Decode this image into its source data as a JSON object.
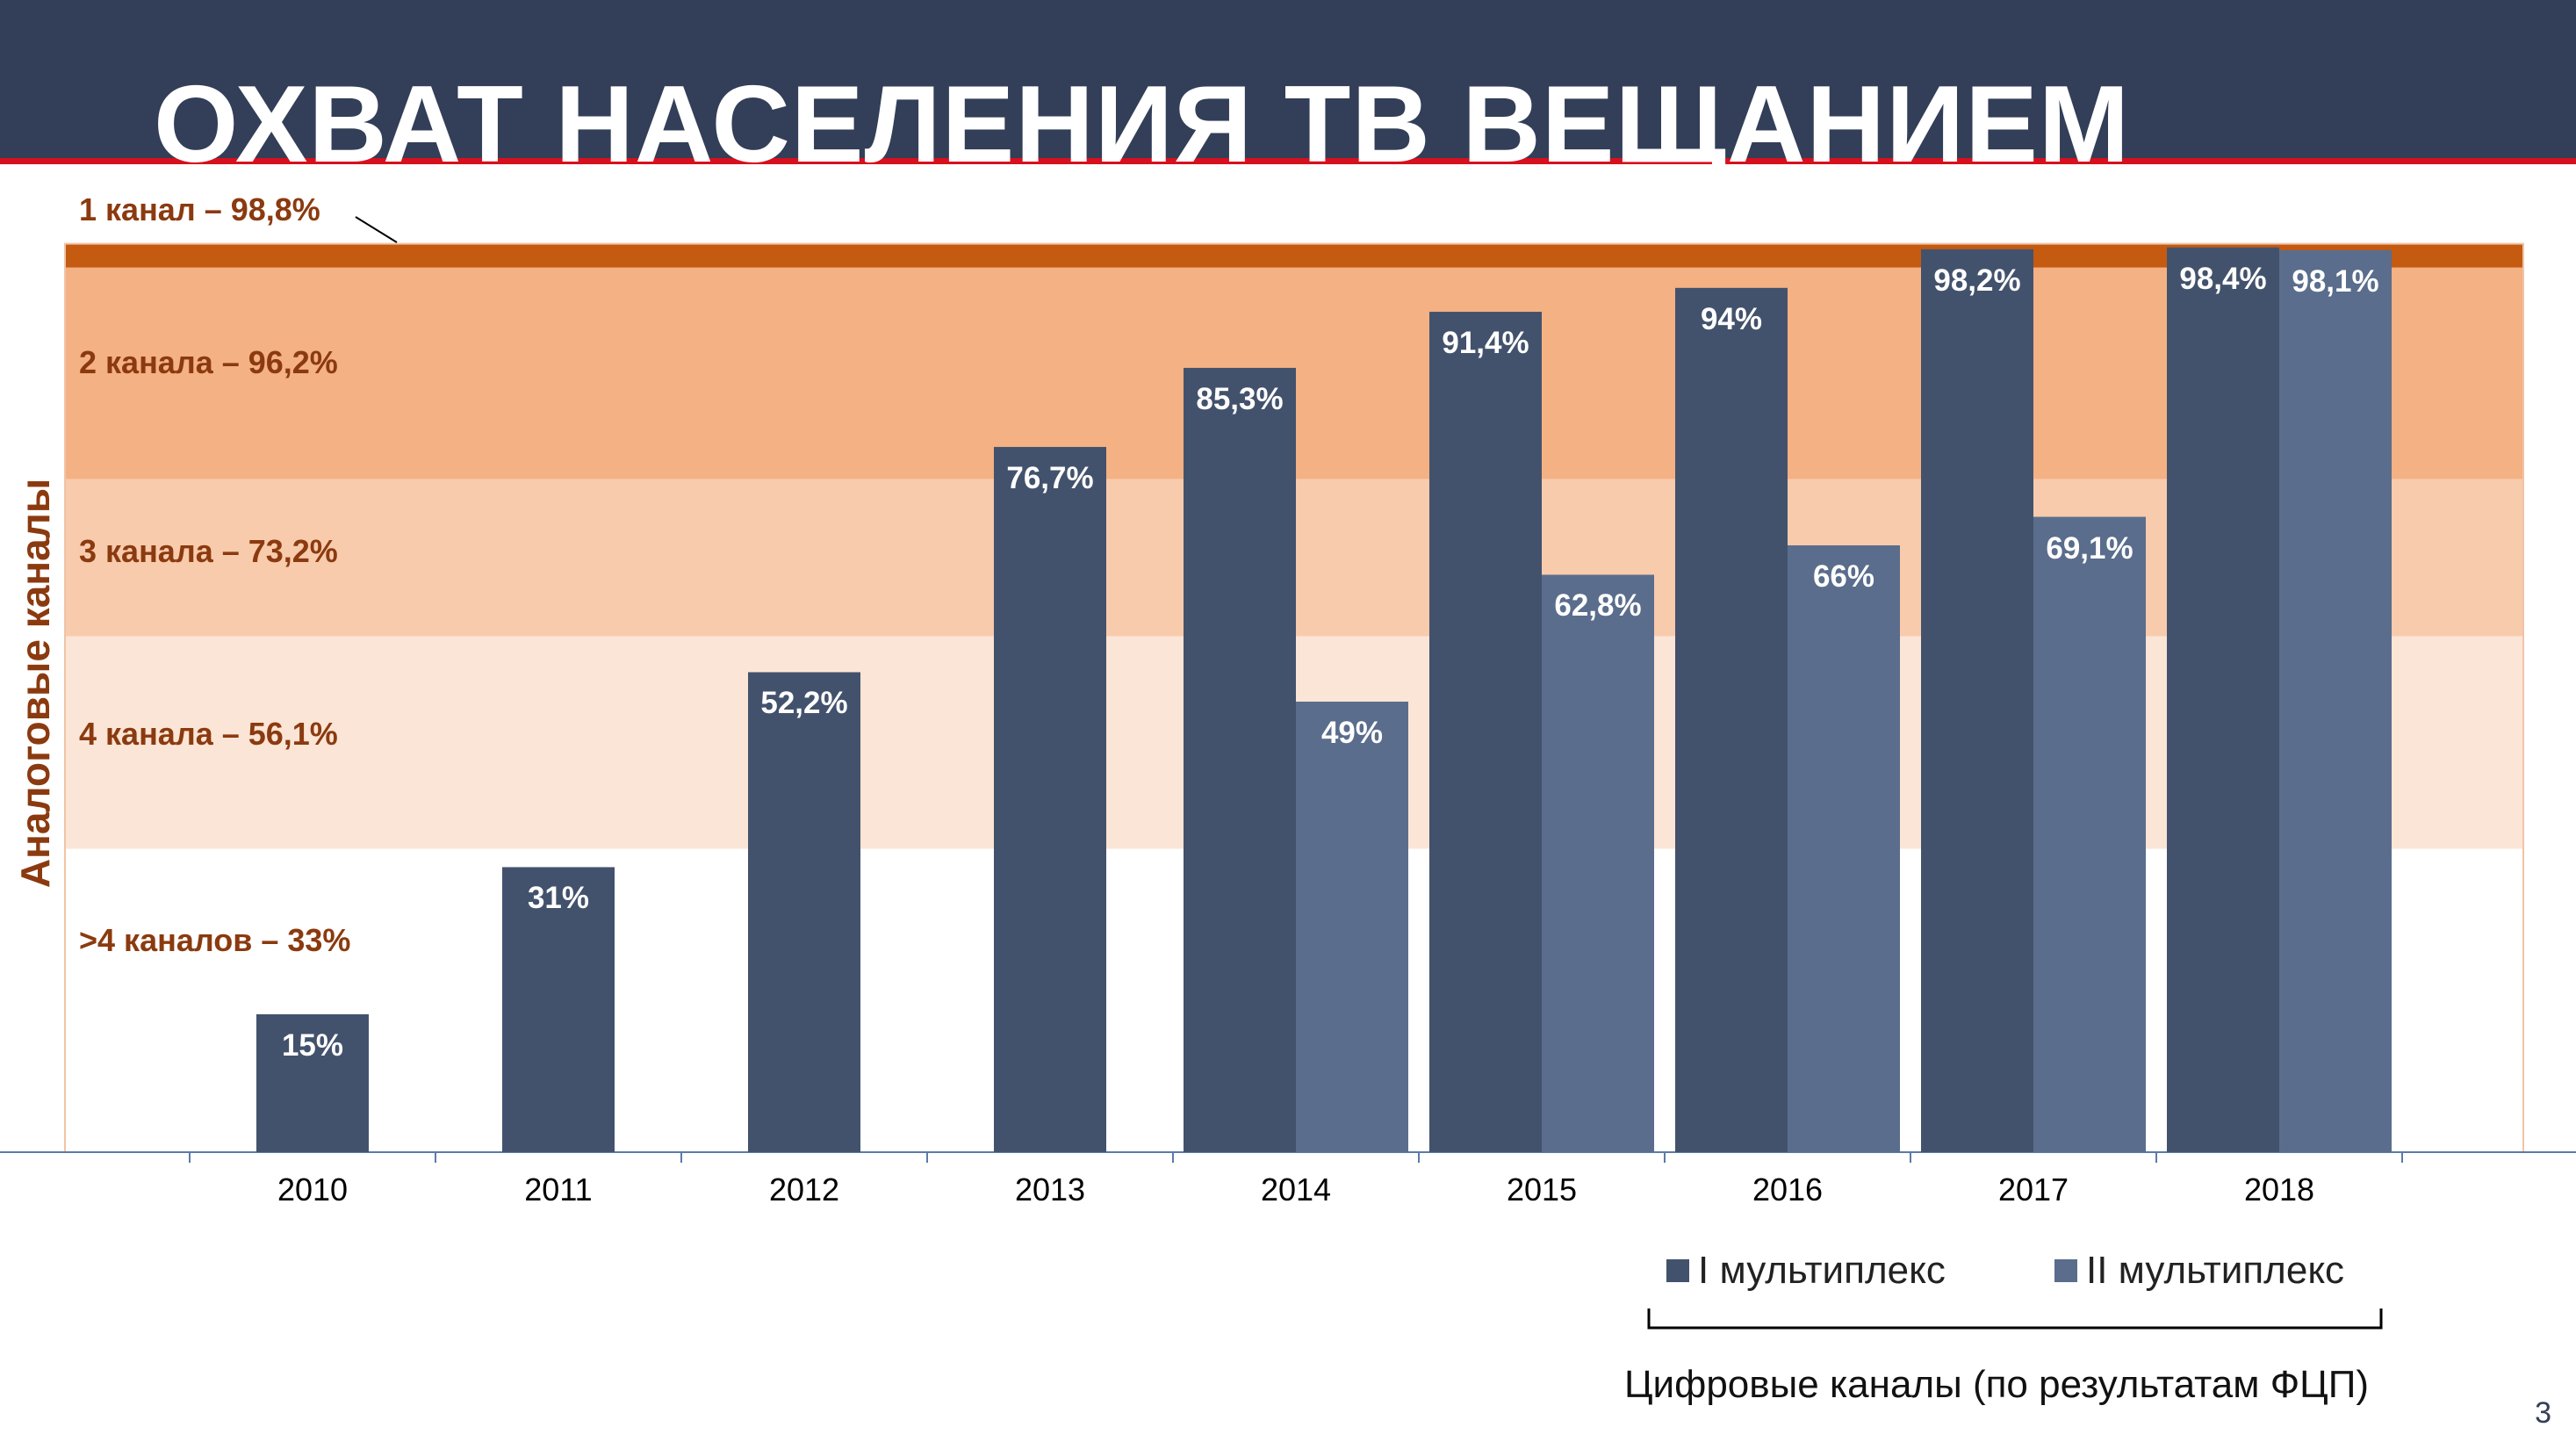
{
  "title": "ОХВАТ НАСЕЛЕНИЯ ТВ ВЕЩАНИЕМ",
  "page_number": "3",
  "colors": {
    "header": "#333e58",
    "accent_red": "#d7101e",
    "multiplex_1": "#43526c",
    "multiplex_2": "#5a6d8c",
    "analog_text": "#8b3a0f"
  },
  "analog": {
    "axis_title": "Аналоговые каналы",
    "bands": [
      {
        "label": "1 канал – 98,8%",
        "value": 98.8,
        "color": "#c55a11"
      },
      {
        "label": "2 канала – 96,2%",
        "value": 96.2,
        "color": "#f4b183"
      },
      {
        "label": "3 канала – 73,2%",
        "value": 73.2,
        "color": "#f8cbad"
      },
      {
        "label": "4 канала – 56,1%",
        "value": 56.1,
        "color": "#fbe5d6"
      },
      {
        "label": ">4 каналов – 33%",
        "value": 33,
        "color": "#ffffff"
      }
    ]
  },
  "chart_data": {
    "type": "bar",
    "categories": [
      "2010",
      "2011",
      "2012",
      "2013",
      "2014",
      "2015",
      "2016",
      "2017",
      "2018"
    ],
    "series": [
      {
        "name": "I мультиплекс",
        "values": [
          15,
          31,
          52.2,
          76.7,
          85.3,
          91.4,
          94,
          98.2,
          98.4
        ],
        "labels": [
          "15%",
          "31%",
          "52,2%",
          "76,7%",
          "85,3%",
          "91,4%",
          "94%",
          "98,2%",
          "98,4%"
        ]
      },
      {
        "name": "II мультиплекс",
        "values": [
          null,
          null,
          null,
          null,
          49,
          62.8,
          66,
          69.1,
          98.1
        ],
        "labels": [
          "",
          "",
          "",
          "",
          "49%",
          "62,8%",
          "66%",
          "69,1%",
          "98,1%"
        ]
      }
    ],
    "ylim": [
      0,
      100
    ],
    "legend_position": "bottom-right",
    "grid": false
  },
  "legend": {
    "mux1": "I мультиплекс",
    "mux2": "II мультиплекс",
    "digital_caption": "Цифровые каналы (по результатам ФЦП)"
  }
}
